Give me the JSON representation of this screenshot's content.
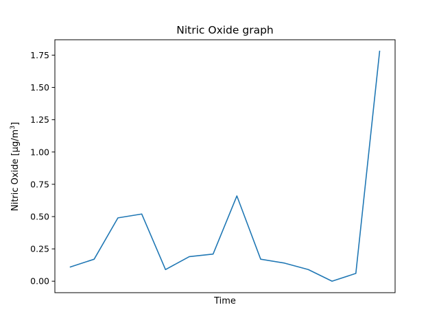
{
  "chart_data": {
    "type": "line",
    "title": "Nitric Oxide graph",
    "xlabel": "Time",
    "ylabel": "Nitric Oxide [µg/m",
    "ylabel_superscript": "3",
    "ylabel_suffix": "]",
    "ylim": [
      -0.089,
      1.869
    ],
    "yticks": [
      0.0,
      0.25,
      0.5,
      0.75,
      1.0,
      1.25,
      1.5,
      1.75
    ],
    "ytick_labels": [
      "0.00",
      "0.25",
      "0.50",
      "0.75",
      "1.00",
      "1.25",
      "1.50",
      "1.75"
    ],
    "x_ticks_shown": false,
    "grid": false,
    "series": [
      {
        "color": "#1f77b4",
        "values": [
          0.11,
          0.17,
          0.49,
          0.52,
          0.09,
          0.19,
          0.21,
          0.66,
          0.17,
          0.14,
          0.09,
          0.0,
          0.06,
          1.78
        ]
      }
    ]
  }
}
